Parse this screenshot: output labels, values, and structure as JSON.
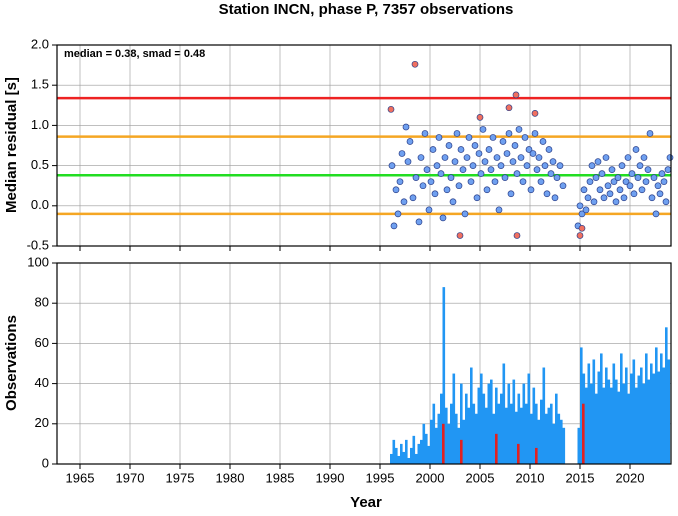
{
  "chart_data": [
    {
      "type": "scatter",
      "title": "Station INCN, phase P, 7357 observations",
      "annotation": "median = 0.38, smad = 0.48",
      "ylabel": "Median residual [s]",
      "xlim": [
        1962.7,
        2024.1
      ],
      "xticks": [
        1965,
        1970,
        1975,
        1980,
        1985,
        1990,
        1995,
        2000,
        2005,
        2010,
        2015,
        2020
      ],
      "ylim": [
        -0.5,
        2.0
      ],
      "yticks": [
        {
          "value": -0.5,
          "label": "-0.5"
        },
        {
          "value": 0,
          "label": "0.0"
        },
        {
          "value": 0.5,
          "label": "0.5"
        },
        {
          "value": 1,
          "label": "1.0"
        },
        {
          "value": 1.5,
          "label": "1.5"
        },
        {
          "value": 2,
          "label": "2.0"
        }
      ],
      "grid": true,
      "hlines": [
        {
          "value": 1.34,
          "color": "#ee2222"
        },
        {
          "value": 0.86,
          "color": "#f5a623"
        },
        {
          "value": 0.38,
          "color": "#22dd22"
        },
        {
          "value": -0.1,
          "color": "#f5a623"
        }
      ],
      "series": [
        {
          "color": "#6fa0f0",
          "x": [
            1996.2,
            1996.4,
            1996.6,
            1996.8,
            1997.0,
            1997.2,
            1997.4,
            1997.6,
            1997.8,
            1998.0,
            1998.3,
            1998.6,
            1998.9,
            1999.1,
            1999.3,
            1999.5,
            1999.7,
            1999.9,
            2000.1,
            2000.3,
            2000.5,
            2000.7,
            2000.9,
            2001.1,
            2001.3,
            2001.5,
            2001.7,
            2001.9,
            2002.1,
            2002.3,
            2002.5,
            2002.7,
            2002.9,
            2003.1,
            2003.3,
            2003.5,
            2003.7,
            2003.9,
            2004.1,
            2004.3,
            2004.5,
            2004.7,
            2004.9,
            2005.1,
            2005.3,
            2005.5,
            2005.7,
            2005.9,
            2006.1,
            2006.3,
            2006.5,
            2006.7,
            2006.9,
            2007.1,
            2007.3,
            2007.5,
            2007.7,
            2007.9,
            2008.1,
            2008.3,
            2008.5,
            2008.7,
            2008.9,
            2009.1,
            2009.3,
            2009.5,
            2009.7,
            2009.9,
            2010.1,
            2010.3,
            2010.5,
            2010.7,
            2010.9,
            2011.1,
            2011.3,
            2011.5,
            2011.7,
            2011.9,
            2012.1,
            2012.3,
            2012.5,
            2012.7,
            2013.0,
            2013.3,
            2014.8,
            2015.0,
            2015.2,
            2015.4,
            2015.6,
            2015.8,
            2016.0,
            2016.2,
            2016.4,
            2016.6,
            2016.8,
            2017.0,
            2017.2,
            2017.4,
            2017.6,
            2017.8,
            2018.0,
            2018.2,
            2018.4,
            2018.6,
            2018.8,
            2019.0,
            2019.2,
            2019.4,
            2019.6,
            2019.8,
            2020.0,
            2020.2,
            2020.4,
            2020.6,
            2020.8,
            2021.0,
            2021.2,
            2021.4,
            2021.6,
            2021.8,
            2022.0,
            2022.2,
            2022.4,
            2022.6,
            2022.8,
            2023.0,
            2023.2,
            2023.4,
            2023.6,
            2023.8,
            2024.0
          ],
          "values": [
            0.5,
            -0.25,
            0.2,
            -0.1,
            0.3,
            0.65,
            0.05,
            0.98,
            0.55,
            0.8,
            0.1,
            0.35,
            -0.2,
            0.6,
            0.25,
            0.9,
            0.45,
            -0.05,
            0.3,
            0.7,
            0.15,
            0.5,
            0.85,
            0.4,
            -0.15,
            0.6,
            0.2,
            0.75,
            0.35,
            0.05,
            0.55,
            0.9,
            0.25,
            0.7,
            0.45,
            -0.1,
            0.6,
            0.85,
            0.3,
            0.5,
            0.75,
            0.1,
            0.65,
            0.4,
            0.95,
            0.55,
            0.2,
            0.7,
            0.45,
            0.85,
            0.3,
            0.6,
            -0.05,
            0.5,
            0.8,
            0.35,
            0.65,
            0.9,
            0.15,
            0.55,
            0.75,
            0.4,
            0.95,
            0.6,
            0.3,
            0.85,
            0.5,
            0.7,
            0.2,
            0.65,
            0.9,
            0.45,
            0.6,
            0.3,
            0.8,
            0.5,
            0.15,
            0.7,
            0.4,
            0.55,
            0.1,
            0.35,
            0.5,
            0.25,
            -0.25,
            0.0,
            -0.1,
            0.2,
            -0.05,
            0.1,
            0.3,
            0.5,
            0.05,
            0.35,
            0.55,
            0.2,
            0.4,
            0.1,
            0.6,
            0.25,
            0.15,
            0.45,
            0.3,
            0.05,
            0.35,
            0.2,
            0.5,
            0.1,
            0.3,
            0.6,
            0.25,
            0.4,
            0.15,
            0.7,
            0.35,
            0.5,
            0.2,
            0.6,
            0.3,
            0.45,
            0.9,
            0.1,
            0.35,
            -0.1,
            0.25,
            0.15,
            0.4,
            0.3,
            0.05,
            0.45,
            0.6
          ]
        },
        {
          "color": "#f07060",
          "x": [
            1996.1,
            1998.5,
            2003.0,
            2005.0,
            2007.9,
            2008.6,
            2008.7,
            2010.5,
            2015.0,
            2015.2
          ],
          "values": [
            1.2,
            1.76,
            -0.37,
            1.1,
            1.22,
            1.38,
            -0.37,
            1.15,
            -0.37,
            -0.28
          ]
        }
      ]
    },
    {
      "type": "bar",
      "xlabel": "Year",
      "ylabel": "Observations",
      "xlim": [
        1962.7,
        2024.1
      ],
      "xticks": [
        1965,
        1970,
        1975,
        1980,
        1985,
        1990,
        1995,
        2000,
        2005,
        2010,
        2015,
        2020
      ],
      "ylim": [
        0,
        100
      ],
      "yticks": [
        0,
        20,
        40,
        60,
        80,
        100
      ],
      "grid": true,
      "series": [
        {
          "color": "#2196f3",
          "x": [
            1996.0,
            1996.25,
            1996.5,
            1996.75,
            1997.0,
            1997.25,
            1997.5,
            1997.75,
            1998.0,
            1998.25,
            1998.5,
            1998.75,
            1999.0,
            1999.25,
            1999.5,
            1999.75,
            2000.0,
            2000.25,
            2000.5,
            2000.75,
            2001.0,
            2001.25,
            2001.5,
            2001.75,
            2002.0,
            2002.25,
            2002.5,
            2002.75,
            2003.0,
            2003.25,
            2003.5,
            2003.75,
            2004.0,
            2004.25,
            2004.5,
            2004.75,
            2005.0,
            2005.25,
            2005.5,
            2005.75,
            2006.0,
            2006.25,
            2006.5,
            2006.75,
            2007.0,
            2007.25,
            2007.5,
            2007.75,
            2008.0,
            2008.25,
            2008.5,
            2008.75,
            2009.0,
            2009.25,
            2009.5,
            2009.75,
            2010.0,
            2010.25,
            2010.5,
            2010.75,
            2011.0,
            2011.25,
            2011.5,
            2011.75,
            2012.0,
            2012.25,
            2012.5,
            2012.75,
            2013.0,
            2013.25,
            2014.75,
            2015.0,
            2015.25,
            2015.5,
            2015.75,
            2016.0,
            2016.25,
            2016.5,
            2016.75,
            2017.0,
            2017.25,
            2017.5,
            2017.75,
            2018.0,
            2018.25,
            2018.5,
            2018.75,
            2019.0,
            2019.25,
            2019.5,
            2019.75,
            2020.0,
            2020.25,
            2020.5,
            2020.75,
            2021.0,
            2021.25,
            2021.5,
            2021.75,
            2022.0,
            2022.25,
            2022.5,
            2022.75,
            2023.0,
            2023.25,
            2023.5,
            2023.75
          ],
          "values": [
            5,
            12,
            8,
            4,
            10,
            6,
            12,
            3,
            8,
            14,
            5,
            10,
            12,
            20,
            15,
            9,
            22,
            30,
            18,
            25,
            35,
            88,
            28,
            20,
            30,
            45,
            25,
            18,
            40,
            22,
            35,
            28,
            48,
            30,
            25,
            38,
            45,
            35,
            28,
            40,
            42,
            25,
            38,
            30,
            35,
            50,
            28,
            40,
            30,
            42,
            26,
            35,
            28,
            40,
            30,
            45,
            25,
            38,
            30,
            22,
            32,
            48,
            25,
            28,
            30,
            20,
            35,
            25,
            22,
            18,
            18,
            58,
            45,
            38,
            50,
            40,
            52,
            35,
            46,
            55,
            38,
            48,
            42,
            38,
            50,
            42,
            36,
            55,
            40,
            48,
            35,
            45,
            52,
            38,
            44,
            48,
            40,
            55,
            42,
            50,
            45,
            58,
            46,
            55,
            48,
            68,
            52
          ]
        },
        {
          "color": "#e02020",
          "x": [
            2001.2,
            2003.0,
            2006.5,
            2008.7,
            2010.5,
            2015.2
          ],
          "values": [
            20,
            12,
            15,
            10,
            8,
            30
          ]
        }
      ]
    }
  ]
}
